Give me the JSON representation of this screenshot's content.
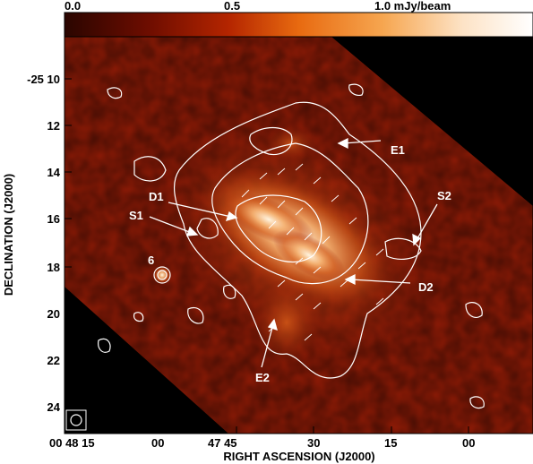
{
  "colorbar": {
    "ticks": [
      "0.0",
      "0.5",
      "1.0 mJy/beam"
    ],
    "stops": [
      "#2a0500",
      "#6e0d00",
      "#b42500",
      "#e86a10",
      "#f6a650",
      "#fde3c6",
      "#ffffff"
    ]
  },
  "axes": {
    "xlabel": "RIGHT ASCENSION (J2000)",
    "ylabel": "DECLINATION (J2000)",
    "xticks": [
      "00 48 15",
      "00",
      "47 45",
      "30",
      "15",
      "00"
    ],
    "yticks": [
      "-25 10",
      "12",
      "14",
      "16",
      "18",
      "20",
      "22",
      "24"
    ]
  },
  "annotations": {
    "E1": "E1",
    "E2": "E2",
    "S1": "S1",
    "S2": "S2",
    "D1": "D1",
    "D2": "D2",
    "six": "6"
  },
  "colors": {
    "background": "#8a1a06",
    "masked": "#000000",
    "contour": "#ffffff"
  }
}
